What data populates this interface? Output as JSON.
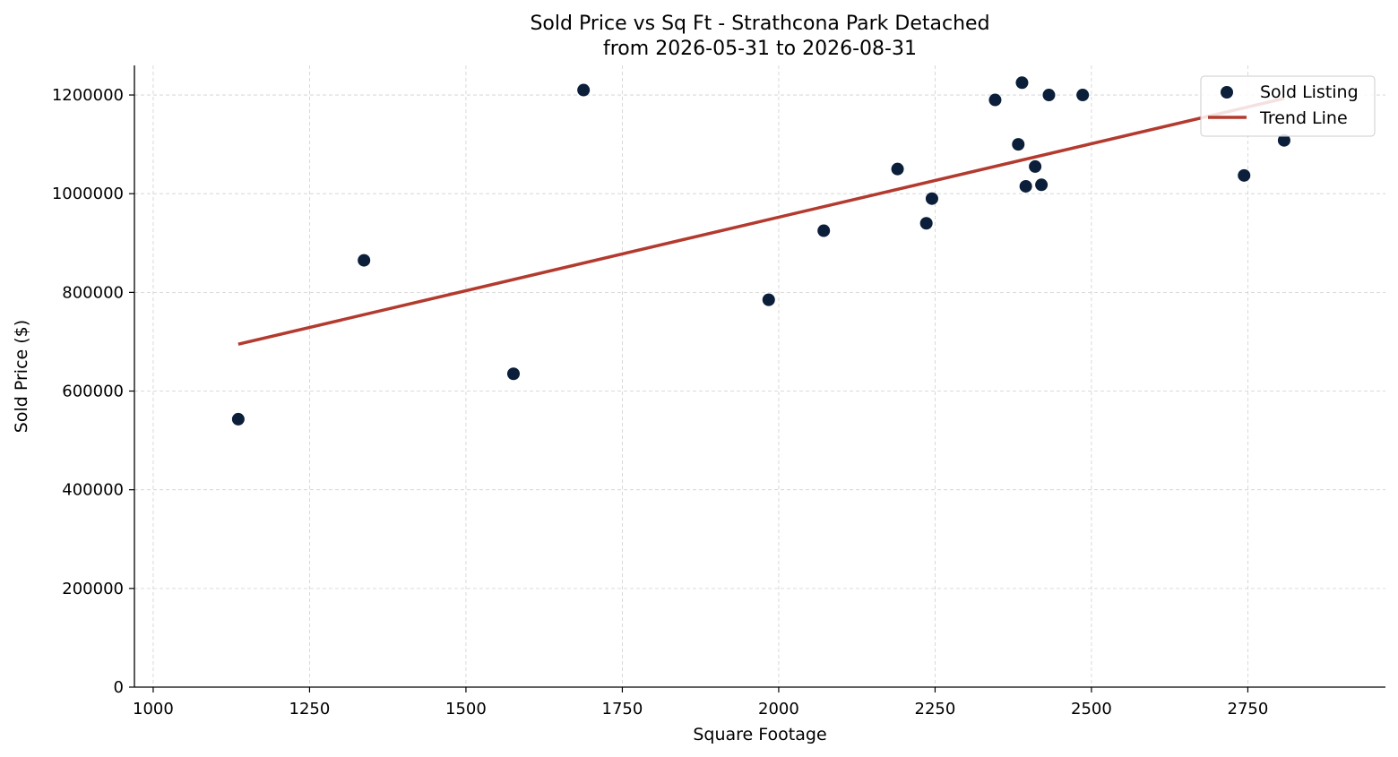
{
  "chart_data": {
    "type": "scatter",
    "title": "Sold Price vs Sq Ft - Strathcona Park Detached",
    "subtitle": "from 2026-05-31 to 2026-08-31",
    "xlabel": "Square Footage",
    "ylabel": "Sold Price ($)",
    "xlim": [
      970,
      2970
    ],
    "ylim": [
      0,
      1260000
    ],
    "x_ticks": [
      1000,
      1250,
      1500,
      1750,
      2000,
      2250,
      2500,
      2750
    ],
    "y_ticks": [
      0,
      200000,
      400000,
      600000,
      800000,
      1000000,
      1200000
    ],
    "x_tick_labels": [
      "1000",
      "1250",
      "1500",
      "1750",
      "2000",
      "2250",
      "2500",
      "2750"
    ],
    "y_tick_labels": [
      "0",
      "200000",
      "400000",
      "600000",
      "800000",
      "1000000",
      "1200000"
    ],
    "grid": true,
    "legend_position": "top-right",
    "colors": {
      "points": "#0b1e3a",
      "trend": "#b33a2e"
    },
    "series": [
      {
        "name": "Sold Listing",
        "kind": "scatter",
        "x": [
          1136,
          1337,
          1576,
          1688,
          1984,
          2072,
          2190,
          2236,
          2245,
          2346,
          2383,
          2389,
          2395,
          2410,
          2420,
          2432,
          2486,
          2744,
          2808
        ],
        "y": [
          543000,
          865000,
          635000,
          1210000,
          785000,
          925000,
          1050000,
          940000,
          990000,
          1190000,
          1100000,
          1225000,
          1015000,
          1055000,
          1018000,
          1200000,
          1200000,
          1037000,
          1108000
        ]
      },
      {
        "name": "Trend Line",
        "kind": "line",
        "x": [
          1136,
          2808
        ],
        "y": [
          695000,
          1193000
        ]
      }
    ]
  }
}
